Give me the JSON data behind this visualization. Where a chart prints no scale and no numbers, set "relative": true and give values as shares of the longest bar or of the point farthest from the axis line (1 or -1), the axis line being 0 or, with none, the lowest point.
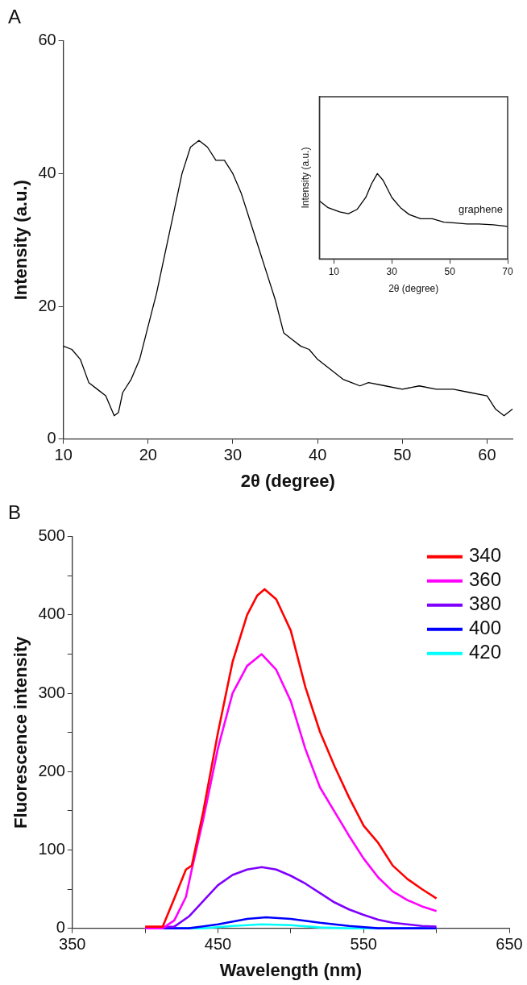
{
  "chart_data": [
    {
      "type": "line",
      "title": "A",
      "xlabel": "2θ (degree)",
      "ylabel": "Intensity (a.u.)",
      "xlim": [
        10,
        63
      ],
      "xticks": [
        10,
        20,
        30,
        40,
        50,
        60
      ],
      "ylim": [
        0,
        60
      ],
      "yticks": [
        0,
        20,
        40,
        60
      ],
      "legend": false,
      "marker": "none",
      "series": [
        {
          "color": "#000000",
          "x": [
            10,
            11,
            12,
            13,
            14,
            15,
            16,
            16.5,
            17,
            18,
            19,
            20,
            21,
            22,
            23,
            24,
            25,
            26,
            27,
            28,
            29,
            30,
            31,
            32,
            33,
            34,
            35,
            36,
            37,
            38,
            39,
            40,
            41,
            42,
            43,
            44,
            45,
            46,
            48,
            50,
            52,
            54,
            56,
            58,
            60,
            61,
            62,
            63
          ],
          "values": [
            14,
            13.5,
            12,
            8.5,
            7.5,
            6.5,
            3.5,
            4,
            7,
            9,
            12,
            17,
            22,
            28,
            34,
            40,
            44,
            45,
            44,
            42,
            42,
            40,
            37,
            33,
            29,
            25,
            21,
            16,
            15,
            14,
            13.5,
            12,
            11,
            10,
            9,
            8.5,
            8,
            8.5,
            8,
            7.5,
            8,
            7.5,
            7.5,
            7,
            6.5,
            4.5,
            3.5,
            4.5
          ]
        }
      ]
    },
    {
      "type": "line",
      "xlabel": "2θ (degree)",
      "ylabel": "Intensity (a.u.)",
      "xlim": [
        5,
        70
      ],
      "xticks": [
        10,
        30,
        50,
        70
      ],
      "relative": true,
      "tick_labels": "x",
      "legend": false,
      "marker": "none",
      "series": [
        {
          "name": "graphene",
          "color": "#000000",
          "x": [
            5,
            8,
            12,
            15,
            18,
            21,
            23,
            25,
            27,
            30,
            33,
            36,
            40,
            44,
            48,
            52,
            56,
            60,
            65,
            70
          ],
          "values": [
            0.68,
            0.6,
            0.55,
            0.53,
            0.58,
            0.72,
            0.88,
            1,
            0.92,
            0.72,
            0.6,
            0.52,
            0.47,
            0.47,
            0.43,
            0.42,
            0.41,
            0.41,
            0.4,
            0.38
          ]
        }
      ]
    },
    {
      "type": "line",
      "title": "B",
      "xlabel": "Wavelength (nm)",
      "ylabel": "Fluorescence intensity",
      "xlim": [
        350,
        650
      ],
      "xticks": [
        350,
        {
          "value": 400,
          "label": null
        },
        450,
        {
          "value": 500,
          "label": null
        },
        550,
        {
          "value": 600,
          "label": null
        },
        650
      ],
      "ylim": [
        0,
        500
      ],
      "yticks": [
        0,
        {
          "value": 50,
          "label": null
        },
        100,
        {
          "value": 150,
          "label": null
        },
        200,
        {
          "value": 250,
          "label": null
        },
        300,
        {
          "value": 350,
          "label": null
        },
        400,
        {
          "value": 450,
          "label": null
        },
        500
      ],
      "legend": "top right",
      "marker": "none",
      "series": [
        {
          "name": "340",
          "color": "#ff0000",
          "x": [
            400,
            412,
            420,
            428,
            432,
            440,
            450,
            460,
            470,
            477,
            482,
            490,
            500,
            510,
            520,
            530,
            540,
            550,
            560,
            570,
            580,
            590,
            600
          ],
          "values": [
            2,
            2,
            38,
            75,
            80,
            150,
            250,
            340,
            400,
            425,
            433,
            420,
            380,
            308,
            251,
            207,
            167,
            131,
            109,
            80,
            63,
            50,
            38
          ]
        },
        {
          "name": "360",
          "color": "#ff00ff",
          "x": [
            400,
            412,
            420,
            428,
            432,
            440,
            450,
            460,
            470,
            480,
            490,
            500,
            510,
            520,
            530,
            540,
            550,
            560,
            570,
            580,
            590,
            600
          ],
          "values": [
            0,
            0,
            10,
            40,
            75,
            140,
            230,
            300,
            335,
            350,
            330,
            290,
            229,
            180,
            149,
            118,
            89,
            65,
            47,
            36,
            28,
            22
          ]
        },
        {
          "name": "380",
          "color": "#7f00ff",
          "x": [
            400,
            420,
            430,
            440,
            450,
            460,
            470,
            480,
            490,
            500,
            510,
            520,
            530,
            540,
            550,
            560,
            570,
            580,
            590,
            600
          ],
          "values": [
            0,
            2,
            15,
            35,
            55,
            68,
            75,
            78,
            75,
            67,
            57,
            45,
            33,
            24,
            17,
            11,
            7,
            5,
            3,
            2
          ]
        },
        {
          "name": "400",
          "color": "#0000ff",
          "x": [
            400,
            430,
            450,
            470,
            483,
            500,
            520,
            540,
            560,
            580,
            600
          ],
          "values": [
            0,
            0,
            5,
            12,
            14,
            12,
            7,
            3,
            0,
            0,
            0
          ]
        },
        {
          "name": "420",
          "color": "#00ffff",
          "x": [
            400,
            440,
            460,
            480,
            500,
            520,
            540,
            560,
            600
          ],
          "values": [
            0,
            0,
            3,
            5,
            4,
            1,
            0,
            0,
            0
          ]
        }
      ]
    }
  ]
}
